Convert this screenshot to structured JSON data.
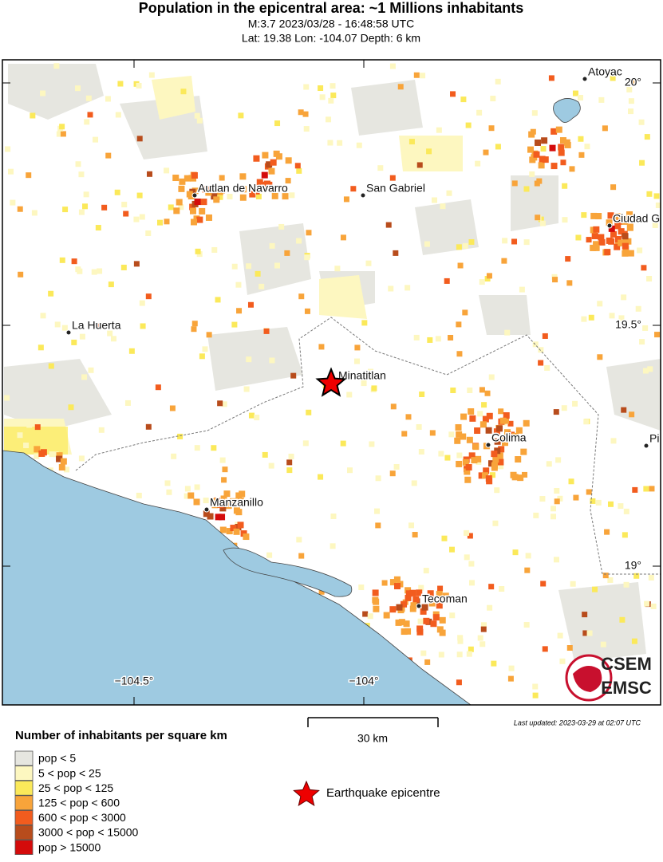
{
  "title": "Population in the epicentral area: ~1 Millions inhabitants",
  "subtitle_lines": [
    "M:3.7 2023/03/28 - 16:48:58 UTC",
    "Lat: 19.38 Lon: -104.07 Depth: 6 km"
  ],
  "map": {
    "cities": [
      "Atoyac",
      "Autlan de Navarro",
      "San Gabriel",
      "Ciudad G",
      "La Huerta",
      "Minatitlan",
      "Colima",
      "Pi",
      "Manzanillo",
      "Tecoman"
    ],
    "lat_labels": [
      "20°",
      "19.5°",
      "19°"
    ],
    "lon_labels": [
      "−104.5°",
      "−104°"
    ],
    "logo": [
      "CSEM",
      "EMSC"
    ],
    "scale_label": "30 km",
    "last_updated": "Last updated: 2023-03-29 at 02:07 UTC"
  },
  "legend": {
    "title": "Number of inhabitants per square km",
    "items": [
      {
        "label": "pop < 5",
        "color": "#e6e6e0"
      },
      {
        "label": "5 < pop < 25",
        "color": "#fdf7c0"
      },
      {
        "label": "25 < pop < 125",
        "color": "#fbe95a"
      },
      {
        "label": "125 < pop < 600",
        "color": "#f8a43a"
      },
      {
        "label": "600 < pop < 3000",
        "color": "#f25c1e"
      },
      {
        "label": "3000 < pop < 15000",
        "color": "#b84c1c"
      },
      {
        "label": "pop > 15000",
        "color": "#d40b0b"
      }
    ],
    "epicentre": "Earthquake epicentre"
  }
}
